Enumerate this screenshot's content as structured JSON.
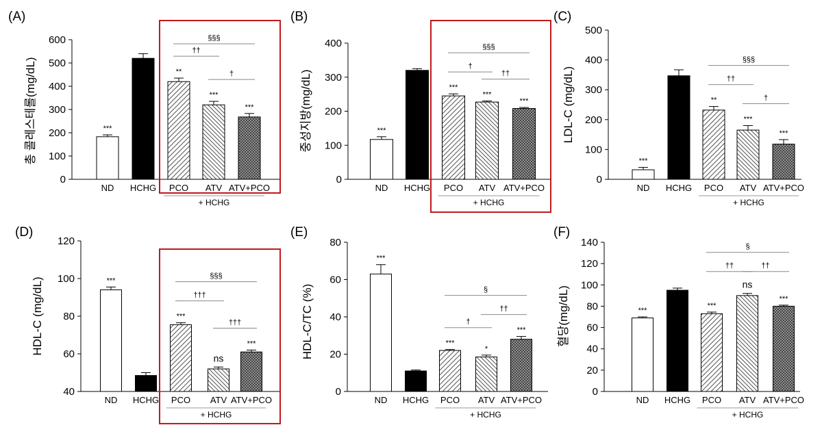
{
  "figure": {
    "accent_box_color": "#c0181c",
    "group_label": "+ HCHG"
  },
  "chart_data": [
    {
      "label": "(A)",
      "type": "bar",
      "ylabel": "총 콜레스테롤(mg/dL)",
      "categories": [
        "ND",
        "HCHG",
        "PCO",
        "ATV",
        "ATV+PCO"
      ],
      "values": [
        183,
        520,
        420,
        320,
        268
      ],
      "errors": [
        8,
        20,
        15,
        15,
        15
      ],
      "significance": [
        "***",
        "",
        "**",
        "***",
        "***"
      ],
      "ylim": [
        0,
        600
      ],
      "yticks": [
        "0",
        "100",
        "200",
        "300",
        "400",
        "500",
        "600"
      ],
      "group_label": "+ HCHG",
      "highlight_box": true,
      "brackets": [
        {
          "from": 2,
          "to": 4,
          "label": "§§§"
        },
        {
          "from": 2,
          "to": 3,
          "label": "††"
        },
        {
          "from": 3,
          "to": 4,
          "label": "†"
        }
      ]
    },
    {
      "label": "(B)",
      "type": "bar",
      "ylabel": "중성지방(mg/dL)",
      "categories": [
        "ND",
        "HCHG",
        "PCO",
        "ATV",
        "ATV+PCO"
      ],
      "values": [
        117,
        320,
        245,
        227,
        208
      ],
      "errors": [
        8,
        5,
        6,
        3,
        3
      ],
      "significance": [
        "***",
        "",
        "***",
        "***",
        "***"
      ],
      "ylim": [
        0,
        400
      ],
      "yticks": [
        "0",
        "100",
        "200",
        "300",
        "400"
      ],
      "group_label": "+ HCHG",
      "highlight_box": true,
      "brackets": [
        {
          "from": 2,
          "to": 4,
          "label": "§§§"
        },
        {
          "from": 2,
          "to": 3,
          "label": "†"
        },
        {
          "from": 3,
          "to": 4,
          "label": "††"
        }
      ]
    },
    {
      "label": "(C)",
      "type": "bar",
      "ylabel": "LDL-C (mg/dL)",
      "categories": [
        "ND",
        "HCHG",
        "PCO",
        "ATV",
        "ATV+PCO"
      ],
      "values": [
        32,
        347,
        232,
        165,
        118
      ],
      "errors": [
        8,
        20,
        12,
        15,
        15
      ],
      "significance": [
        "***",
        "",
        "**",
        "***",
        "***"
      ],
      "ylim": [
        0,
        500
      ],
      "yticks": [
        "0",
        "100",
        "200",
        "300",
        "400",
        "500"
      ],
      "group_label": "+ HCHG",
      "highlight_box": false,
      "brackets": [
        {
          "from": 2,
          "to": 4,
          "label": "§§§"
        },
        {
          "from": 2,
          "to": 3,
          "label": "††"
        },
        {
          "from": 3,
          "to": 4,
          "label": "†"
        }
      ]
    },
    {
      "label": "(D)",
      "type": "bar",
      "ylabel": "HDL-C (mg/dL)",
      "categories": [
        "ND",
        "HCHG",
        "PCO",
        "ATV",
        "ATV+PCO"
      ],
      "values": [
        94,
        48.5,
        75.5,
        52,
        61
      ],
      "errors": [
        1.5,
        1.5,
        1,
        1,
        1
      ],
      "significance": [
        "***",
        "",
        "***",
        "ns",
        "***"
      ],
      "ylim": [
        40,
        120
      ],
      "yticks": [
        "40",
        "60",
        "80",
        "100",
        "120"
      ],
      "group_label": "+ HCHG",
      "highlight_box": true,
      "brackets": [
        {
          "from": 2,
          "to": 4,
          "label": "§§§"
        },
        {
          "from": 2,
          "to": 3,
          "label": "†††"
        },
        {
          "from": 3,
          "to": 4,
          "label": "†††"
        }
      ]
    },
    {
      "label": "(E)",
      "type": "bar",
      "ylabel": "HDL-C/TC (%)",
      "categories": [
        "ND",
        "HCHG",
        "PCO",
        "ATV",
        "ATV+PCO"
      ],
      "values": [
        63,
        11,
        22,
        18.5,
        28
      ],
      "errors": [
        5,
        0.5,
        0.5,
        1,
        1.5
      ],
      "significance": [
        "***",
        "",
        "***",
        "*",
        "***"
      ],
      "ylim": [
        0,
        80
      ],
      "yticks": [
        "0",
        "20",
        "40",
        "60",
        "80"
      ],
      "group_label": "+ HCHG",
      "highlight_box": false,
      "brackets": [
        {
          "from": 2,
          "to": 4,
          "label": "§"
        },
        {
          "from": 2,
          "to": 3,
          "label": "†"
        },
        {
          "from": 3,
          "to": 4,
          "label": "††"
        }
      ]
    },
    {
      "label": "(F)",
      "type": "bar",
      "ylabel": "혈당(mg/dL)",
      "categories": [
        "ND",
        "HCHG",
        "PCO",
        "ATV",
        "ATV+PCO"
      ],
      "values": [
        69,
        95,
        73,
        90,
        80
      ],
      "errors": [
        1,
        2,
        1.5,
        2,
        1
      ],
      "significance": [
        "***",
        "",
        "***",
        "ns",
        "***"
      ],
      "ylim": [
        0,
        140
      ],
      "yticks": [
        "0",
        "20",
        "40",
        "60",
        "80",
        "100",
        "120",
        "140"
      ],
      "group_label": "+ HCHG",
      "highlight_box": false,
      "brackets": [
        {
          "from": 2,
          "to": 4,
          "label": "§"
        },
        {
          "from": 2,
          "to": 3,
          "label": "††"
        },
        {
          "from": 3,
          "to": 4,
          "label": "††"
        }
      ]
    }
  ]
}
